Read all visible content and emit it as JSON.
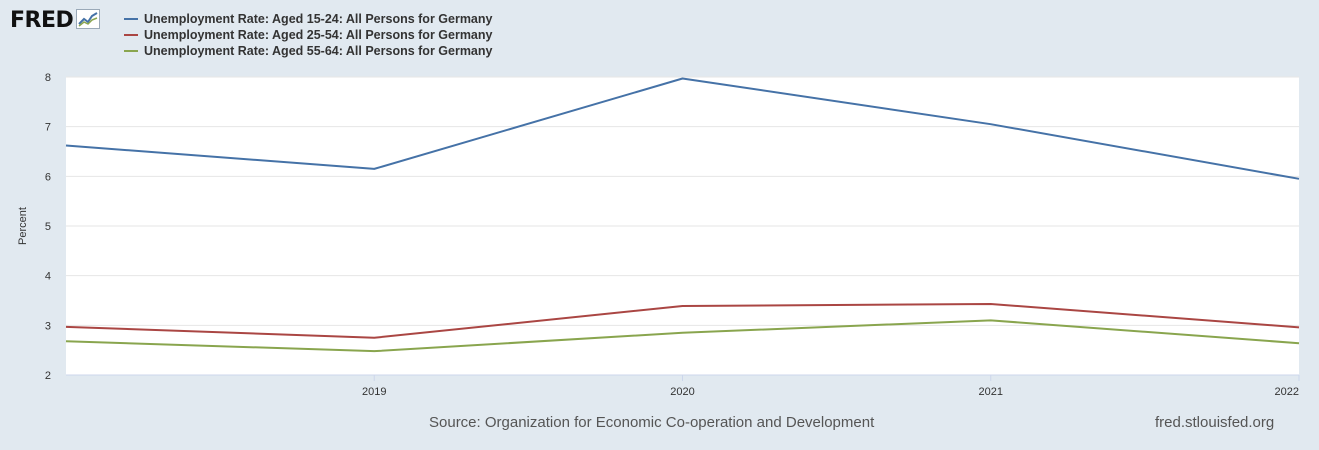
{
  "brand": {
    "logo_text": "FRED"
  },
  "colors": {
    "background": "#e1e9f0",
    "plot_bg": "#ffffff",
    "series1": "#4572a7",
    "series2": "#aa4643",
    "series3": "#89a54e"
  },
  "footer": {
    "source": "Source: Organization for Economic Co-operation and Development",
    "site": "fred.stlouisfed.org"
  },
  "chart_data": {
    "type": "line",
    "title": "",
    "xlabel": "",
    "ylabel": "Percent",
    "x": [
      2018,
      2019,
      2020,
      2021,
      2022
    ],
    "xticks": [
      "2019",
      "2020",
      "2021",
      "2022"
    ],
    "xtick_values": [
      2019,
      2020,
      2021,
      2022
    ],
    "ylim": [
      2,
      8
    ],
    "yticks": [
      "2",
      "3",
      "4",
      "5",
      "6",
      "7",
      "8"
    ],
    "ytick_values": [
      2,
      3,
      4,
      5,
      6,
      7,
      8
    ],
    "grid": true,
    "legend_position": "top-left",
    "series": [
      {
        "name": "Unemployment Rate: Aged 15-24: All Persons for Germany",
        "color": "#4572a7",
        "values": [
          6.62,
          6.15,
          7.97,
          7.05,
          5.95
        ]
      },
      {
        "name": "Unemployment Rate: Aged 25-54: All Persons for Germany",
        "color": "#aa4643",
        "values": [
          2.97,
          2.75,
          3.39,
          3.43,
          2.96
        ]
      },
      {
        "name": "Unemployment Rate: Aged 55-64: All Persons for Germany",
        "color": "#89a54e",
        "values": [
          2.68,
          2.48,
          2.85,
          3.1,
          2.64
        ]
      }
    ]
  }
}
